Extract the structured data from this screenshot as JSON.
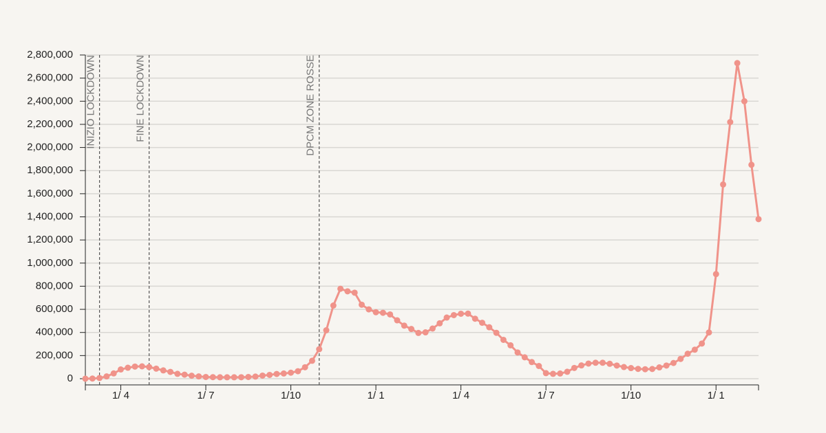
{
  "chart_data": {
    "type": "line",
    "categories": [
      null,
      null,
      null,
      null,
      null,
      "1/ 4",
      null,
      null,
      null,
      null,
      null,
      null,
      null,
      null,
      null,
      null,
      null,
      "1/ 7",
      null,
      null,
      null,
      null,
      null,
      null,
      null,
      null,
      null,
      null,
      null,
      "1/10",
      null,
      null,
      null,
      null,
      null,
      null,
      null,
      null,
      null,
      null,
      null,
      "1/ 1",
      null,
      null,
      null,
      null,
      null,
      null,
      null,
      null,
      null,
      null,
      null,
      "1/ 4",
      null,
      null,
      null,
      null,
      null,
      null,
      null,
      null,
      null,
      null,
      null,
      "1/ 7",
      null,
      null,
      null,
      null,
      null,
      null,
      null,
      null,
      null,
      null,
      null,
      "1/10",
      null,
      null,
      null,
      null,
      null,
      null,
      null,
      null,
      null,
      null,
      null,
      "1/ 1",
      null,
      null,
      null,
      null,
      null,
      null
    ],
    "series": [
      {
        "color": "#f0938a",
        "values": [
          200,
          1500,
          6000,
          20000,
          46000,
          80000,
          95000,
          105000,
          107000,
          101000,
          87000,
          72000,
          59000,
          42000,
          35000,
          26000,
          20000,
          15000,
          13500,
          12500,
          12300,
          12500,
          13000,
          15000,
          18500,
          27000,
          33000,
          41000,
          45000,
          52000,
          65000,
          99000,
          155000,
          255000,
          419000,
          633000,
          778000,
          756000,
          744000,
          640000,
          600000,
          575000,
          570000,
          556000,
          505000,
          459000,
          430000,
          396000,
          401000,
          434000,
          479000,
          529000,
          550000,
          562000,
          563000,
          519000,
          484000,
          445000,
          397000,
          336000,
          289000,
          227000,
          185000,
          144000,
          110000,
          48000,
          42000,
          45000,
          60000,
          93000,
          115000,
          131000,
          138000,
          138000,
          129000,
          114000,
          101000,
          92000,
          85000,
          82000,
          84000,
          98000,
          114000,
          136000,
          171000,
          216000,
          251000,
          304000,
          400000,
          905000,
          1680000,
          2220000,
          2730000,
          2400000,
          1850000,
          1380000
        ]
      }
    ],
    "ylim": [
      0,
      2800000
    ],
    "yticks": [
      0,
      {
        "value": 200000,
        "label": "200,000"
      },
      {
        "value": 400000,
        "label": "400,000"
      },
      {
        "value": 600000,
        "label": "600,000"
      },
      {
        "value": 800000,
        "label": "800,000"
      },
      {
        "value": 1000000,
        "label": "1,000,000"
      },
      {
        "value": 1200000,
        "label": "1,200,000"
      },
      {
        "value": 1400000,
        "label": "1,400,000"
      },
      {
        "value": 1600000,
        "label": "1,600,000"
      },
      {
        "value": 1800000,
        "label": "1,800,000"
      },
      {
        "value": 2000000,
        "label": "2,000,000"
      },
      {
        "value": 2200000,
        "label": "2,200,000"
      },
      {
        "value": 2400000,
        "label": "2,400,000"
      },
      {
        "value": 2600000,
        "label": "2,600,000"
      },
      {
        "value": 2800000,
        "label": "2,800,000"
      }
    ],
    "grid": true,
    "annotations": [
      {
        "label": "INIZIO LOCKDOWN"
      },
      {
        "label": "FINE LOCKDOWN"
      },
      {
        "label": "DPCM ZONE ROSSE"
      }
    ]
  }
}
